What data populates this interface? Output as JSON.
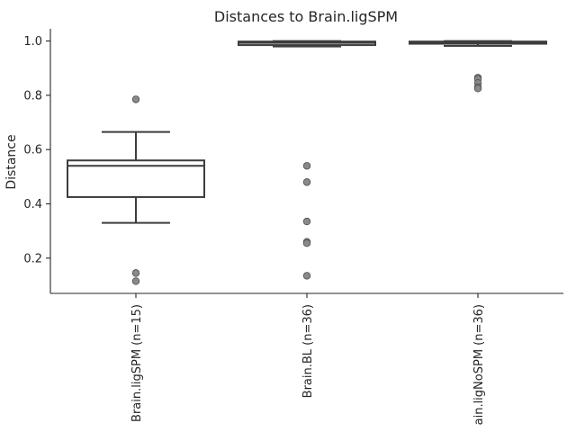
{
  "chart_data": {
    "type": "boxplot",
    "title": "Distances to Brain.ligSPM",
    "xlabel": "",
    "ylabel": "Distance",
    "ylim": [
      0.07,
      1.045
    ],
    "yticks": [
      0.2,
      0.4,
      0.6,
      0.8,
      1.0
    ],
    "ytick_labels": [
      "0.2",
      "0.4",
      "0.6",
      "0.8",
      "1.0"
    ],
    "grid": false,
    "categories": [
      "Brain.ligSPM (n=15)",
      "Brain.BL (n=36)",
      "ain.ligNoSPM (n=36)"
    ],
    "boxes": [
      {
        "whisker_low": 0.33,
        "q1": 0.425,
        "median": 0.54,
        "q3": 0.56,
        "whisker_high": 0.665,
        "outliers": [
          0.785,
          0.145,
          0.115
        ]
      },
      {
        "whisker_low": 0.98,
        "q1": 0.985,
        "median": 0.993,
        "q3": 0.998,
        "whisker_high": 1.0,
        "outliers": [
          0.54,
          0.48,
          0.335,
          0.26,
          0.255,
          0.135
        ]
      },
      {
        "whisker_low": 0.982,
        "q1": 0.99,
        "median": 0.995,
        "q3": 0.998,
        "whisker_high": 1.0,
        "outliers": [
          0.865,
          0.86,
          0.845,
          0.83,
          0.825
        ]
      }
    ]
  }
}
